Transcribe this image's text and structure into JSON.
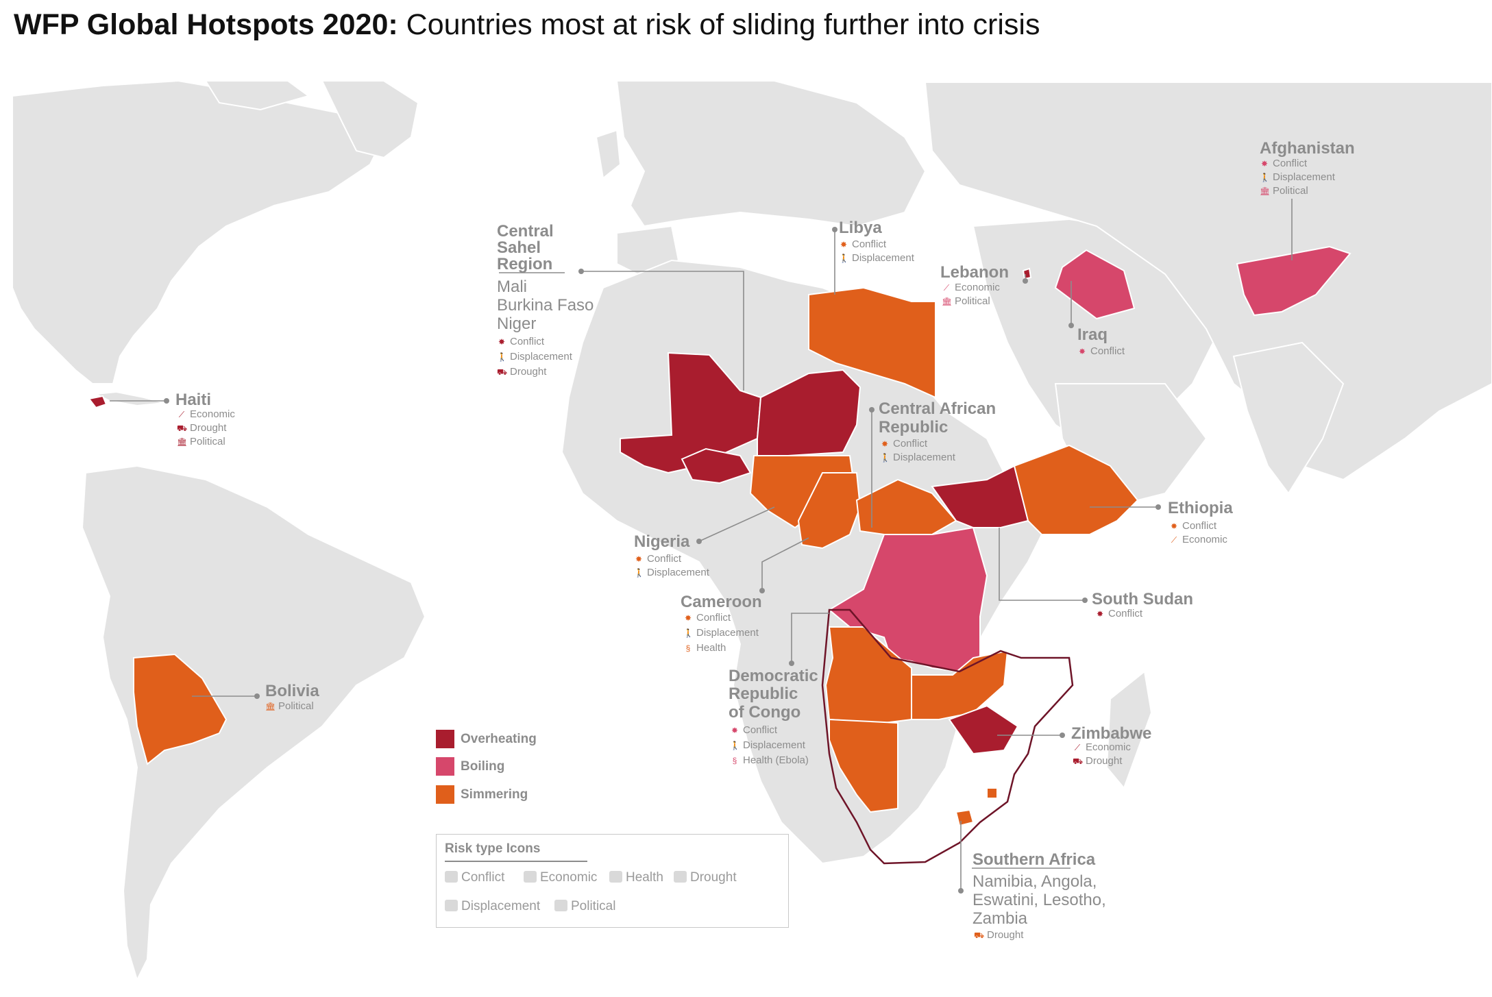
{
  "title": {
    "bold": "WFP Global Hotspots 2020:",
    "rest": " Countries most at risk of sliding further into crisis"
  },
  "colors": {
    "ocean": "#ffffff",
    "land": "#e3e3e3",
    "land_border": "#ffffff",
    "overheating": "#a91d2e",
    "boiling": "#d6476b",
    "simmering": "#e05f1b",
    "text_gray": "#8c8c8c",
    "southern_africa_outline": "#6e1428"
  },
  "legend": {
    "categories": [
      {
        "label": "Overheating",
        "color": "#a91d2e"
      },
      {
        "label": "Boiling",
        "color": "#d6476b"
      },
      {
        "label": "Simmering",
        "color": "#e05f1b"
      }
    ],
    "icon_box": {
      "title": "Risk type Icons",
      "items": [
        {
          "label": "Conflict",
          "icon": "conflict-icon"
        },
        {
          "label": "Economic",
          "icon": "economic-icon"
        },
        {
          "label": "Health",
          "icon": "health-icon"
        },
        {
          "label": "Drought",
          "icon": "drought-icon"
        },
        {
          "label": "Displacement",
          "icon": "displacement-icon"
        },
        {
          "label": "Political",
          "icon": "political-icon"
        }
      ]
    }
  },
  "icon_glyphs": {
    "Conflict": "✸",
    "Economic": "⟋",
    "Health": "§",
    "Drought": "⛟",
    "Displacement": "🚶",
    "Political": "🏛"
  },
  "hotspots": [
    {
      "id": "central-sahel",
      "name": "Central Sahel Region",
      "category": "Overheating",
      "countries": "Mali, Burkina Faso, Niger",
      "risks": [
        "Conflict",
        "Displacement",
        "Drought"
      ]
    },
    {
      "id": "haiti",
      "name": "Haiti",
      "category": "Overheating",
      "risks": [
        "Economic",
        "Drought",
        "Political"
      ]
    },
    {
      "id": "libya",
      "name": "Libya",
      "category": "Simmering",
      "risks": [
        "Conflict",
        "Displacement"
      ]
    },
    {
      "id": "lebanon",
      "name": "Lebanon",
      "category": "Boiling",
      "risks": [
        "Economic",
        "Political"
      ]
    },
    {
      "id": "iraq",
      "name": "Iraq",
      "category": "Boiling",
      "risks": [
        "Conflict"
      ]
    },
    {
      "id": "afghanistan",
      "name": "Afghanistan",
      "category": "Boiling",
      "risks": [
        "Conflict",
        "Displacement",
        "Political"
      ]
    },
    {
      "id": "car",
      "name": "Central African Republic",
      "category": "Simmering",
      "risks": [
        "Conflict",
        "Displacement"
      ]
    },
    {
      "id": "ethiopia",
      "name": "Ethiopia",
      "category": "Simmering",
      "risks": [
        "Conflict",
        "Economic"
      ]
    },
    {
      "id": "nigeria",
      "name": "Nigeria",
      "category": "Simmering",
      "risks": [
        "Conflict",
        "Displacement"
      ]
    },
    {
      "id": "cameroon",
      "name": "Cameroon",
      "category": "Simmering",
      "risks": [
        "Conflict",
        "Displacement",
        "Health"
      ]
    },
    {
      "id": "south-sudan",
      "name": "South Sudan",
      "category": "Overheating",
      "risks": [
        "Conflict"
      ]
    },
    {
      "id": "drc",
      "name": "Democratic Republic of Congo",
      "category": "Boiling",
      "risks": [
        "Conflict",
        "Displacement",
        "Health (Ebola)"
      ]
    },
    {
      "id": "bolivia",
      "name": "Bolivia",
      "category": "Simmering",
      "risks": [
        "Political"
      ]
    },
    {
      "id": "zimbabwe",
      "name": "Zimbabwe",
      "category": "Overheating",
      "risks": [
        "Economic",
        "Drought"
      ]
    },
    {
      "id": "southern-africa",
      "name": "Southern Africa",
      "category": "Simmering",
      "countries": "Namibia, Angola, Eswatini, Lesotho, Zambia",
      "risks": [
        "Drought"
      ]
    }
  ],
  "labels": {
    "central_sahel_l1": "Central",
    "central_sahel_l2": "Sahel",
    "central_sahel_l3": "Region",
    "central_sahel_c1": "Mali",
    "central_sahel_c2": "Burkina Faso",
    "central_sahel_c3": "Niger",
    "car_l1": "Central African",
    "car_l2": "Republic",
    "drc_l1": "Democratic",
    "drc_l2": "Republic",
    "drc_l3": "of Congo",
    "sa_c1": "Namibia, Angola,",
    "sa_c2": "Eswatini, Lesotho,",
    "sa_c3": "Zambia"
  }
}
